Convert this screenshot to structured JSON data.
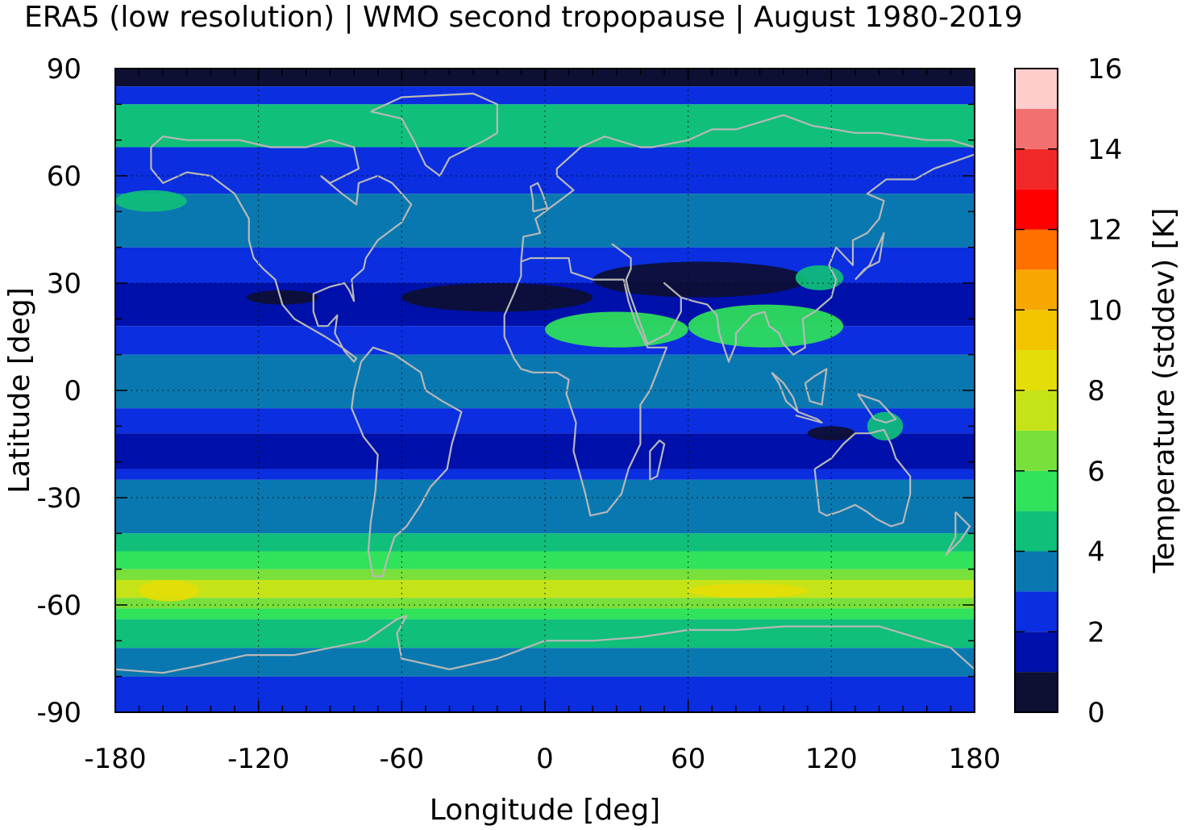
{
  "title": "ERA5 (low resolution) | WMO second tropopause | August 1980-2019",
  "chart_data": {
    "type": "heatmap",
    "title": "ERA5 (low resolution) | WMO second tropopause | August 1980-2019",
    "xlabel": "Longitude [deg]",
    "ylabel": "Latitude [deg]",
    "xlim": [
      -180,
      180
    ],
    "ylim": [
      -90,
      90
    ],
    "x_ticks": [
      "-180",
      "-120",
      "-60",
      "0",
      "60",
      "120",
      "180"
    ],
    "y_ticks": [
      "90",
      "60",
      "30",
      "0",
      "-30",
      "-60",
      "-90"
    ],
    "grid": "dotted",
    "colorbar": {
      "label": "Temperature (stddev) [K]",
      "range": [
        0,
        16
      ],
      "ticks": [
        "16",
        "14",
        "12",
        "10",
        "8",
        "6",
        "4",
        "2",
        "0"
      ],
      "colors": [
        {
          "from": 0,
          "to": 1,
          "color": "#0d0f33"
        },
        {
          "from": 1,
          "to": 2,
          "color": "#0010aa"
        },
        {
          "from": 2,
          "to": 3,
          "color": "#0a2ee0"
        },
        {
          "from": 3,
          "to": 4,
          "color": "#0a78b0"
        },
        {
          "from": 4,
          "to": 5,
          "color": "#10bf7a"
        },
        {
          "from": 5,
          "to": 6,
          "color": "#30e35a"
        },
        {
          "from": 6,
          "to": 7,
          "color": "#78e03a"
        },
        {
          "from": 7,
          "to": 8,
          "color": "#c6e318"
        },
        {
          "from": 8,
          "to": 9,
          "color": "#e4dd08"
        },
        {
          "from": 9,
          "to": 10,
          "color": "#f2c500"
        },
        {
          "from": 10,
          "to": 11,
          "color": "#f7a800"
        },
        {
          "from": 11,
          "to": 12,
          "color": "#ff7000"
        },
        {
          "from": 12,
          "to": 13,
          "color": "#ff0000"
        },
        {
          "from": 13,
          "to": 14,
          "color": "#f22828"
        },
        {
          "from": 14,
          "to": 15,
          "color": "#f27070"
        },
        {
          "from": 15,
          "to": 16,
          "color": "#ffcccc"
        }
      ]
    },
    "coastline_color": "#b8b8b8",
    "zonal_bands": [
      {
        "lat_from": 85,
        "lat_to": 90,
        "value": 0.5
      },
      {
        "lat_from": 80,
        "lat_to": 85,
        "value": 2.5
      },
      {
        "lat_from": 68,
        "lat_to": 80,
        "value": 4.5
      },
      {
        "lat_from": 55,
        "lat_to": 68,
        "value": 2.5
      },
      {
        "lat_from": 40,
        "lat_to": 55,
        "value": 3.5
      },
      {
        "lat_from": 30,
        "lat_to": 40,
        "value": 2.5
      },
      {
        "lat_from": 18,
        "lat_to": 30,
        "value": 1.5
      },
      {
        "lat_from": 10,
        "lat_to": 18,
        "value": 2.5
      },
      {
        "lat_from": -5,
        "lat_to": 10,
        "value": 3.5
      },
      {
        "lat_from": -12,
        "lat_to": -5,
        "value": 2.5
      },
      {
        "lat_from": -22,
        "lat_to": -12,
        "value": 1.5
      },
      {
        "lat_from": -25,
        "lat_to": -22,
        "value": 2.5
      },
      {
        "lat_from": -40,
        "lat_to": -25,
        "value": 3.5
      },
      {
        "lat_from": -45,
        "lat_to": -40,
        "value": 4.5
      },
      {
        "lat_from": -50,
        "lat_to": -45,
        "value": 5.5
      },
      {
        "lat_from": -53,
        "lat_to": -50,
        "value": 6.5
      },
      {
        "lat_from": -58,
        "lat_to": -53,
        "value": 7.5
      },
      {
        "lat_from": -61,
        "lat_to": -58,
        "value": 6.5
      },
      {
        "lat_from": -64,
        "lat_to": -61,
        "value": 5.5
      },
      {
        "lat_from": -72,
        "lat_to": -64,
        "value": 4.5
      },
      {
        "lat_from": -80,
        "lat_to": -72,
        "value": 3.5
      },
      {
        "lat_from": -90,
        "lat_to": -80,
        "value": 2.5
      }
    ],
    "regional_features": [
      {
        "lon_from": -180,
        "lon_to": -150,
        "lat_from": 50,
        "lat_to": 56,
        "value": 4.5
      },
      {
        "lon_from": -60,
        "lon_to": 20,
        "lat_from": 22,
        "lat_to": 30,
        "value": 0.5
      },
      {
        "lon_from": 20,
        "lon_to": 110,
        "lat_from": 26,
        "lat_to": 36,
        "value": 0.5
      },
      {
        "lon_from": -125,
        "lon_to": -95,
        "lat_from": 24,
        "lat_to": 28,
        "value": 0.5
      },
      {
        "lon_from": 0,
        "lon_to": 60,
        "lat_from": 12,
        "lat_to": 22,
        "value": 5.5
      },
      {
        "lon_from": 60,
        "lon_to": 125,
        "lat_from": 12,
        "lat_to": 24,
        "value": 5.5
      },
      {
        "lon_from": 105,
        "lon_to": 125,
        "lat_from": 28,
        "lat_to": 35,
        "value": 4.5
      },
      {
        "lon_from": 110,
        "lon_to": 130,
        "lat_from": -14,
        "lat_to": -10,
        "value": 0.5
      },
      {
        "lon_from": 135,
        "lon_to": 150,
        "lat_from": -14,
        "lat_to": -6,
        "value": 4.5
      },
      {
        "lon_from": -170,
        "lon_to": -145,
        "lat_from": -59,
        "lat_to": -53,
        "value": 8.5
      },
      {
        "lon_from": 60,
        "lon_to": 110,
        "lat_from": -58,
        "lat_to": -54,
        "value": 8.5
      }
    ]
  }
}
